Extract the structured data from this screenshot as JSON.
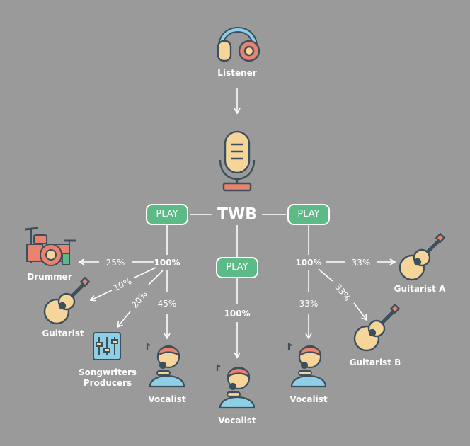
{
  "nodes": {
    "listener": "Listener",
    "center": "TWB",
    "drummer": "Drummer",
    "guitarist": "Guitarist",
    "songwriters_line1": "Songwriters",
    "songwriters_line2": "Producers",
    "vocalist_left": "Vocalist",
    "vocalist_center": "Vocalist",
    "vocalist_right": "Vocalist",
    "guitarist_a": "Guitarist A",
    "guitarist_b": "Guitarist B"
  },
  "play_buttons": {
    "left": "PLAY",
    "center": "PLAY",
    "right": "PLAY"
  },
  "splits": {
    "left_total": "100%",
    "drummer": "25%",
    "guitarist": "10%",
    "songwriters": "20%",
    "vocalist": "45%",
    "center_total": "100%",
    "right_total": "100%",
    "guitarist_a": "33%",
    "guitarist_b": "33%",
    "vocalist_right": "33%"
  },
  "colors": {
    "background": "#9a9a9a",
    "play": "#5cba86",
    "icon_outline": "#3d4f5c",
    "accent_orange": "#e8836f",
    "accent_cream": "#f6d59a"
  },
  "icons": [
    "headphones-icon",
    "microphone-icon",
    "drum-kit-icon",
    "guitar-icon",
    "mixer-icon",
    "singer-icon"
  ]
}
